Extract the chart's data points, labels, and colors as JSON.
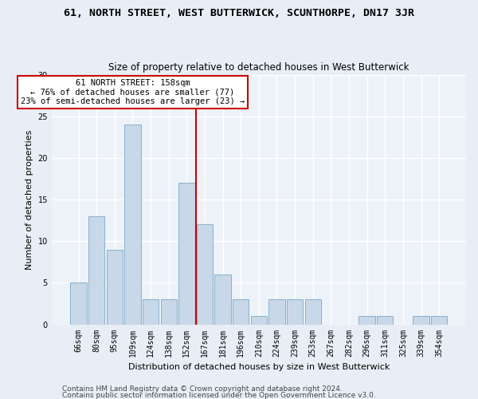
{
  "title": "61, NORTH STREET, WEST BUTTERWICK, SCUNTHORPE, DN17 3JR",
  "subtitle": "Size of property relative to detached houses in West Butterwick",
  "xlabel": "Distribution of detached houses by size in West Butterwick",
  "ylabel": "Number of detached properties",
  "categories": [
    "66sqm",
    "80sqm",
    "95sqm",
    "109sqm",
    "124sqm",
    "138sqm",
    "152sqm",
    "167sqm",
    "181sqm",
    "196sqm",
    "210sqm",
    "224sqm",
    "239sqm",
    "253sqm",
    "267sqm",
    "282sqm",
    "296sqm",
    "311sqm",
    "325sqm",
    "339sqm",
    "354sqm"
  ],
  "values": [
    5,
    13,
    9,
    24,
    3,
    3,
    17,
    12,
    6,
    3,
    1,
    3,
    3,
    3,
    0,
    0,
    1,
    1,
    0,
    1,
    1
  ],
  "bar_color": "#c8d8e8",
  "bar_edge_color": "#7aa8c8",
  "reference_line_x": 6.5,
  "reference_line_color": "#cc0000",
  "annotation_line1": "61 NORTH STREET: 158sqm",
  "annotation_line2": "← 76% of detached houses are smaller (77)",
  "annotation_line3": "23% of semi-detached houses are larger (23) →",
  "annotation_box_color": "#ffffff",
  "annotation_box_edge_color": "#cc0000",
  "ylim": [
    0,
    30
  ],
  "yticks": [
    0,
    5,
    10,
    15,
    20,
    25,
    30
  ],
  "bg_color": "#e8eef5",
  "plot_bg_color": "#edf2f8",
  "grid_color": "#ffffff",
  "footer_line1": "Contains HM Land Registry data © Crown copyright and database right 2024.",
  "footer_line2": "Contains public sector information licensed under the Open Government Licence v3.0.",
  "title_fontsize": 9.5,
  "subtitle_fontsize": 8.5,
  "tick_fontsize": 7,
  "ylabel_fontsize": 8,
  "xlabel_fontsize": 8,
  "annotation_fontsize": 7.5,
  "footer_fontsize": 6.5
}
